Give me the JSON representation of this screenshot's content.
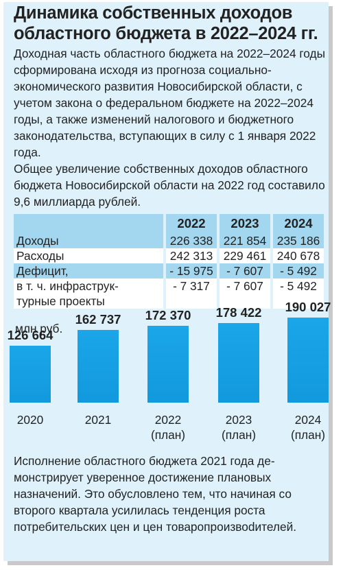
{
  "title_line1": "Динамика собственных доходов",
  "title_line2": "областного бюджета в 2022–2024 гг.",
  "paragraph1": "Доходная часть областного бюджета на 2022–2024 годы сформирована исходя из прогноза со­циально-экономического развития Новосибирской области, с учетом закона о федеральном бюджете на 2022–2024 годы, а также изменений налогово­го и бюджетного законодательства, вступающих в силу с 1 января 2022 года.",
  "paragraph2": "Общее увеличение собственных доходов областного бюджета Новосибирской области на 2022 год составило 9,6 миллиарда рублей.",
  "table": {
    "years": [
      "2022",
      "2023",
      "2024"
    ],
    "rows": [
      {
        "label": "Доходы",
        "values": [
          "226 338",
          "221 854",
          "235 186"
        ]
      },
      {
        "label": "Расходы",
        "values": [
          "242 313",
          "229 461",
          "240 678"
        ]
      },
      {
        "label": "Дефицит,",
        "values": [
          "- 15 975",
          "- 7 607",
          "- 5 492"
        ]
      },
      {
        "label": "в т. ч. инфраструк-",
        "values": [
          "- 7 317",
          "- 7 607",
          "- 5 492"
        ]
      },
      {
        "label": "турные проекты",
        "values": [
          "",
          "",
          ""
        ]
      }
    ]
  },
  "chart_data": {
    "type": "bar",
    "ylabel": "млн руб.",
    "categories": [
      {
        "line1": "2020",
        "line2": ""
      },
      {
        "line1": "2021",
        "line2": ""
      },
      {
        "line1": "2022",
        "line2": "(план)"
      },
      {
        "line1": "2023",
        "line2": "(план)"
      },
      {
        "line1": "2024",
        "line2": "(план)"
      }
    ],
    "values": [
      126664,
      162737,
      172370,
      178422,
      190027
    ],
    "value_labels": [
      "126 664",
      "162 737",
      "172 370",
      "178 422",
      "190 027"
    ],
    "bar_color": "#1299dd"
  },
  "paragraph3": "Исполнение областного бюджета 2021 года де­монстрирует уверенное достижение плановых назначений. Это обусловлено тем, что начиная со второго квартала усилилась тенденция ро­ста потребительских цен и цен товаропроизво­dителей."
}
